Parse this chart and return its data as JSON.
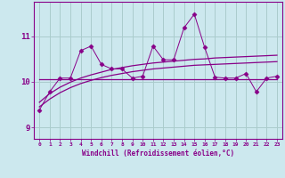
{
  "xlabel": "Windchill (Refroidissement éolien,°C)",
  "bg_color": "#cce8ee",
  "line_color": "#880088",
  "grid_color": "#aacccc",
  "x_data": [
    0,
    1,
    2,
    3,
    4,
    5,
    6,
    7,
    8,
    9,
    10,
    11,
    12,
    13,
    14,
    15,
    16,
    17,
    18,
    19,
    20,
    21,
    22,
    23
  ],
  "y_main": [
    9.38,
    9.78,
    10.08,
    10.08,
    10.68,
    10.78,
    10.38,
    10.28,
    10.28,
    10.08,
    10.12,
    10.78,
    10.48,
    10.48,
    11.18,
    11.48,
    10.75,
    10.1,
    10.08,
    10.08,
    10.18,
    9.78,
    10.08,
    10.12
  ],
  "y_mean": [
    10.05,
    10.05,
    10.05,
    10.05,
    10.05,
    10.05,
    10.05,
    10.05,
    10.05,
    10.05,
    10.05,
    10.05,
    10.05,
    10.05,
    10.05,
    10.05,
    10.05,
    10.05,
    10.05,
    10.05,
    10.05,
    10.05,
    10.05,
    10.05
  ],
  "y_reg1": [
    9.45,
    9.62,
    9.76,
    9.87,
    9.96,
    10.03,
    10.09,
    10.14,
    10.18,
    10.22,
    10.25,
    10.28,
    10.3,
    10.32,
    10.34,
    10.36,
    10.37,
    10.38,
    10.39,
    10.4,
    10.41,
    10.42,
    10.43,
    10.44
  ],
  "y_reg2": [
    9.55,
    9.74,
    9.88,
    9.99,
    10.08,
    10.15,
    10.21,
    10.27,
    10.31,
    10.35,
    10.38,
    10.41,
    10.43,
    10.45,
    10.47,
    10.49,
    10.5,
    10.52,
    10.53,
    10.54,
    10.55,
    10.56,
    10.57,
    10.58
  ],
  "ylim": [
    8.75,
    11.75
  ],
  "xlim": [
    -0.5,
    23.5
  ],
  "yticks": [
    9,
    10,
    11
  ],
  "xticks": [
    0,
    1,
    2,
    3,
    4,
    5,
    6,
    7,
    8,
    9,
    10,
    11,
    12,
    13,
    14,
    15,
    16,
    17,
    18,
    19,
    20,
    21,
    22,
    23
  ]
}
